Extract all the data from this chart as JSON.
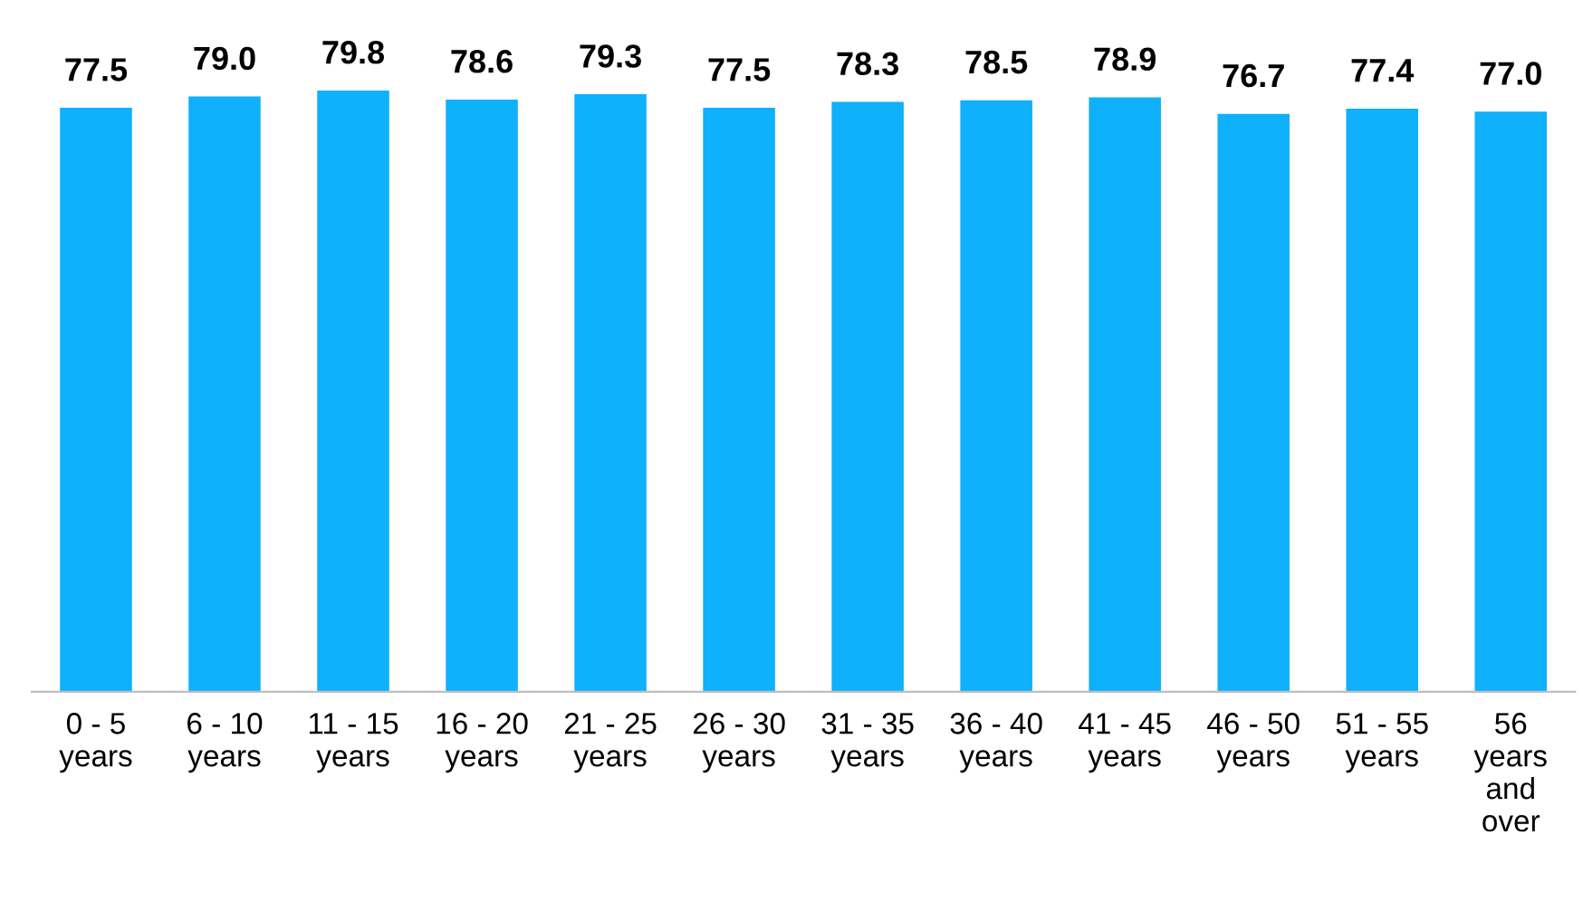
{
  "chart_data": {
    "type": "bar",
    "categories": [
      "0 - 5\nyears",
      "6 - 10\nyears",
      "11 - 15\nyears",
      "16 - 20\nyears",
      "21 - 25\nyears",
      "26 - 30\nyears",
      "31 - 35\nyears",
      "36 - 40\nyears",
      "41 - 45\nyears",
      "46 - 50\nyears",
      "51 - 55\nyears",
      "56\nyears\nand\nover"
    ],
    "values": [
      77.5,
      79.0,
      79.8,
      78.6,
      79.3,
      77.5,
      78.3,
      78.5,
      78.9,
      76.7,
      77.4,
      77.0
    ],
    "color": "#0fb0fc",
    "value_labels": [
      "77.5",
      "79.0",
      "79.8",
      "78.6",
      "79.3",
      "77.5",
      "78.3",
      "78.5",
      "78.9",
      "76.7",
      "77.4",
      "77.0"
    ],
    "tick_labels": "x",
    "grid": false,
    "legend": false
  }
}
